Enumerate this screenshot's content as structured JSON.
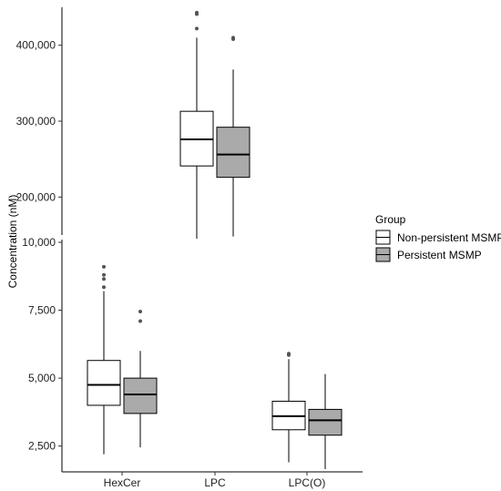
{
  "chart_data": {
    "type": "boxplot",
    "xlabel": "",
    "ylabel": "Concentration (nM)",
    "categories": [
      "HexCer",
      "LPC",
      "LPC(O)"
    ],
    "y_axis_break": true,
    "panels": [
      {
        "name": "upper",
        "ylim": [
          150000,
          450000
        ],
        "yticks": [
          200000,
          300000,
          400000
        ],
        "ytick_labels": [
          "200,000",
          "300,000",
          "400,000"
        ],
        "categories_shown": [
          "LPC"
        ]
      },
      {
        "name": "lower",
        "ylim": [
          1550,
          10100
        ],
        "yticks": [
          2500,
          5000,
          7500,
          10000
        ],
        "ytick_labels": [
          "2,500",
          "5,000",
          "7,500",
          "10,000"
        ],
        "categories_shown": [
          "HexCer",
          "LPC(O)"
        ]
      }
    ],
    "legend": {
      "title": "Group",
      "position": "right"
    },
    "series": [
      {
        "name": "Non-persistent MSMP",
        "fill": "#ffffff",
        "boxes": [
          {
            "category": "HexCer",
            "panel": "lower",
            "whisker_low": 2200,
            "q1": 4000,
            "median": 4750,
            "q3": 5650,
            "whisker_high": 8200,
            "outliers": [
              8350,
              8650,
              8800,
              9100
            ]
          },
          {
            "category": "LPC",
            "panel": "upper",
            "whisker_low": 145000,
            "q1": 241000,
            "median": 276000,
            "q3": 313000,
            "whisker_high": 410000,
            "outliers": [
              422000,
              441000,
              443000
            ]
          },
          {
            "category": "LPC(O)",
            "panel": "lower",
            "whisker_low": 1900,
            "q1": 3100,
            "median": 3600,
            "q3": 4150,
            "whisker_high": 5700,
            "outliers": [
              5850,
              5900
            ]
          }
        ]
      },
      {
        "name": "Persistent MSMP",
        "fill": "#aaaaaa",
        "boxes": [
          {
            "category": "HexCer",
            "panel": "lower",
            "whisker_low": 2450,
            "q1": 3700,
            "median": 4400,
            "q3": 5000,
            "whisker_high": 6000,
            "outliers": [
              7100,
              7450
            ]
          },
          {
            "category": "LPC",
            "panel": "upper",
            "whisker_low": 148000,
            "q1": 226000,
            "median": 256000,
            "q3": 292000,
            "whisker_high": 368000,
            "outliers": [
              408000,
              410000
            ]
          },
          {
            "category": "LPC(O)",
            "panel": "lower",
            "whisker_low": 1650,
            "q1": 2900,
            "median": 3450,
            "q3": 3850,
            "whisker_high": 5150,
            "outliers": []
          }
        ]
      }
    ]
  }
}
